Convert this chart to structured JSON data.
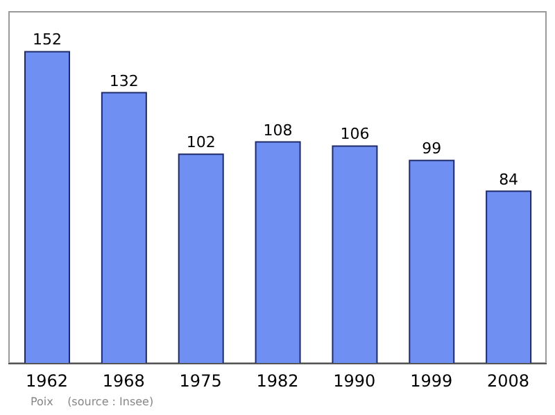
{
  "chart_data": {
    "type": "bar",
    "categories": [
      "1962",
      "1968",
      "1975",
      "1982",
      "1990",
      "1999",
      "2008"
    ],
    "values": [
      152,
      132,
      102,
      108,
      106,
      99,
      84
    ],
    "color": "#6f8ff2",
    "data_labels": true,
    "annotations": [
      "Poix    (source : Insee)"
    ]
  }
}
